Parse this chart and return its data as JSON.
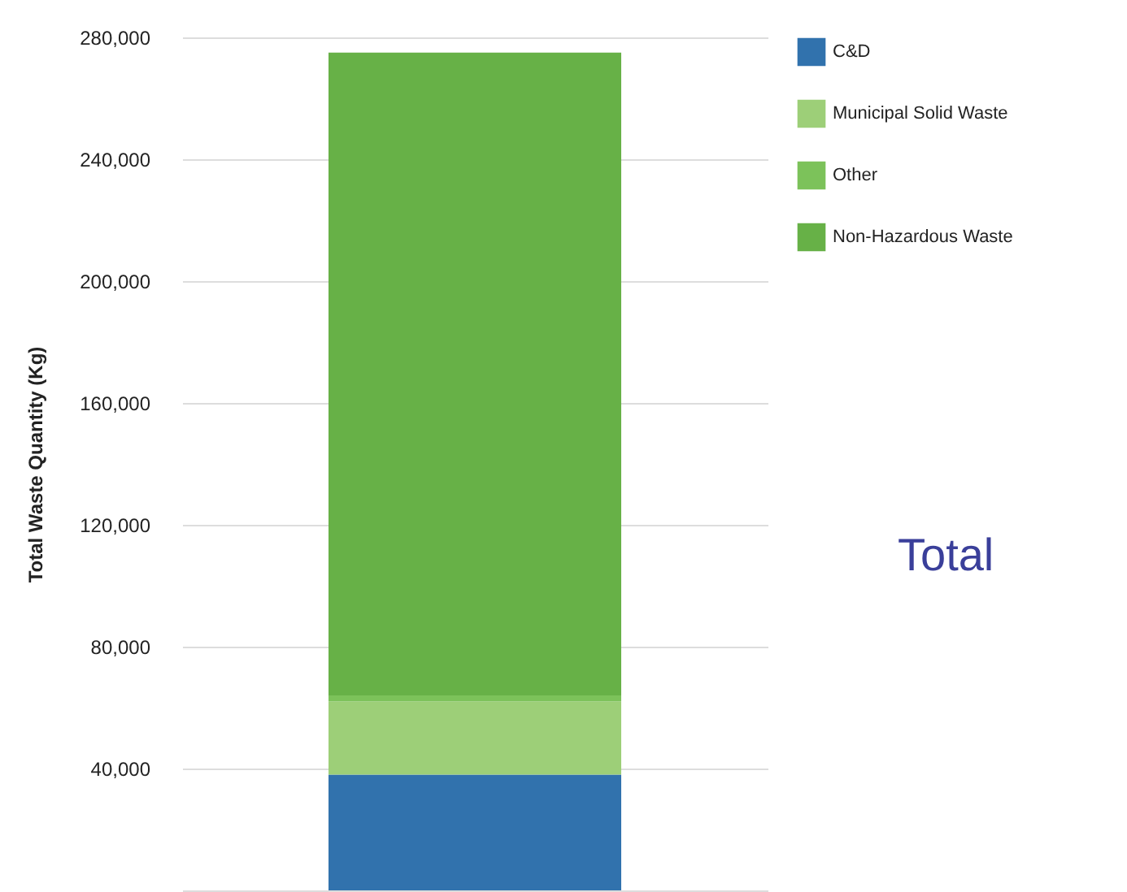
{
  "chart_data": {
    "type": "bar",
    "stacked": true,
    "ylabel": "Total Waste Quantity (Kg)",
    "categories": [
      null
    ],
    "series": [
      {
        "name": "C&D",
        "color": "#3172ad",
        "values": [
          38000
        ]
      },
      {
        "name": "Municipal Solid Waste",
        "color": "#9dcf78",
        "values": [
          24000
        ]
      },
      {
        "name": "Other",
        "color": "#7cc25a",
        "values": [
          2000
        ]
      },
      {
        "name": "Non-Hazardous Waste",
        "color": "#67b147",
        "values": [
          211000
        ]
      }
    ],
    "ylim": [
      0,
      280000
    ],
    "yticks": [
      {
        "value": 0,
        "label": null
      },
      {
        "value": 40000,
        "label": "40,000"
      },
      {
        "value": 80000,
        "label": "80,000"
      },
      {
        "value": 120000,
        "label": "120,000"
      },
      {
        "value": 160000,
        "label": "160,000"
      },
      {
        "value": 200000,
        "label": "200,000"
      },
      {
        "value": 240000,
        "label": "240,000"
      },
      {
        "value": 280000,
        "label": "280,000"
      }
    ],
    "grid": "y",
    "legend": "right",
    "annotations": [
      "Total"
    ]
  }
}
